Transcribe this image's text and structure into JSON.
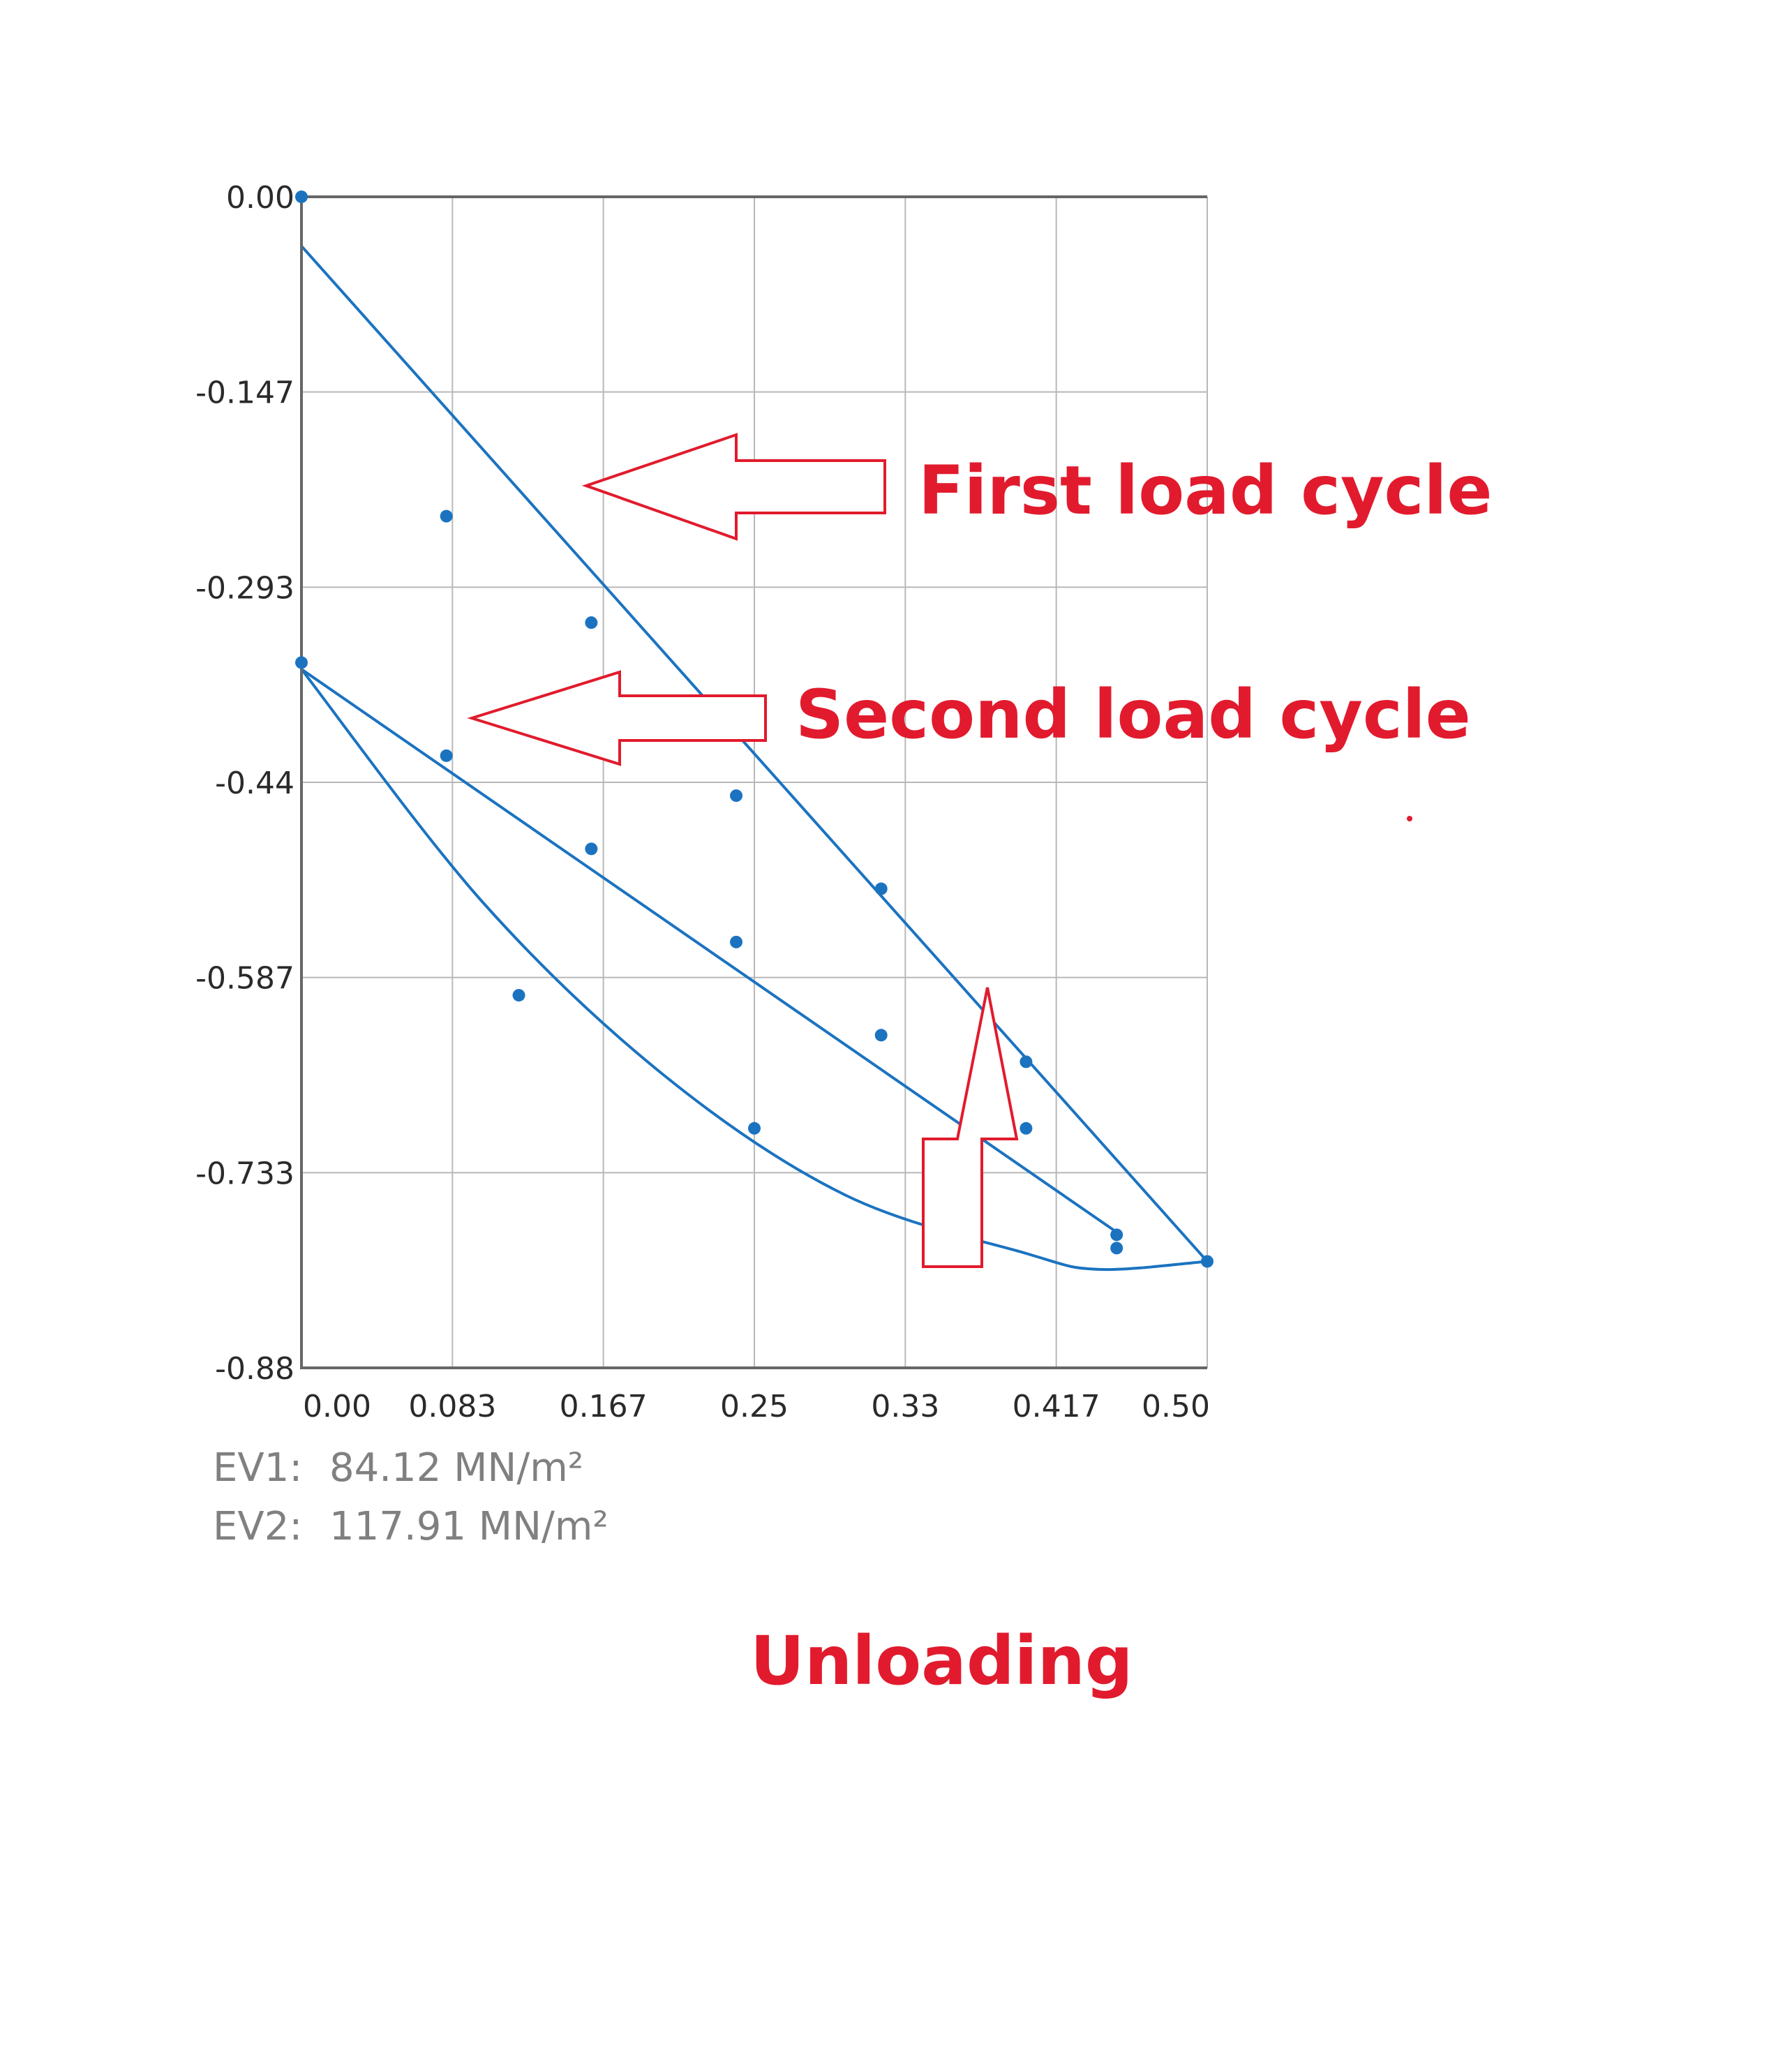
{
  "colors": {
    "series": "#1b73c0",
    "annotation": "#e11b2d",
    "info_text": "#808080",
    "grid": "#b8b8b8",
    "axis": "#666666"
  },
  "chart_data": {
    "type": "scatter",
    "title": "",
    "xlabel": "",
    "ylabel": "",
    "xlim": [
      0,
      0.5
    ],
    "ylim": [
      -0.88,
      0
    ],
    "grid": true,
    "x_ticks": [
      "0.00",
      "0.083",
      "0.167",
      "0.25",
      "0.33",
      "0.417",
      "0.50"
    ],
    "y_ticks": [
      "0.00",
      "-0.147",
      "-0.293",
      "-0.44",
      "-0.587",
      "-0.733",
      "-0.88"
    ],
    "series": [
      {
        "points": [
          [
            0.0,
            0.0
          ],
          [
            0.08,
            -0.24
          ],
          [
            0.16,
            -0.32
          ],
          [
            0.24,
            -0.45
          ],
          [
            0.32,
            -0.52
          ],
          [
            0.4,
            -0.65
          ],
          [
            0.45,
            -0.78
          ],
          [
            0.45,
            -0.79
          ],
          [
            0.5,
            -0.8
          ],
          [
            0.12,
            -0.6
          ],
          [
            0.25,
            -0.7
          ],
          [
            0.0,
            -0.35
          ],
          [
            0.08,
            -0.42
          ],
          [
            0.16,
            -0.49
          ],
          [
            0.24,
            -0.56
          ],
          [
            0.32,
            -0.63
          ],
          [
            0.4,
            -0.7
          ]
        ],
        "fits": [
          {
            "type": "line",
            "from": [
              0.0,
              -0.037
            ],
            "to": [
              0.5,
              -0.8
            ]
          },
          {
            "type": "line",
            "from": [
              0.0,
              -0.355
            ],
            "to": [
              0.45,
              -0.778
            ]
          },
          {
            "type": "curve",
            "points": [
              [
                0.0,
                -0.355
              ],
              [
                0.1,
                -0.53
              ],
              [
                0.2,
                -0.66
              ],
              [
                0.3,
                -0.75
              ],
              [
                0.4,
                -0.794
              ],
              [
                0.44,
                -0.806
              ],
              [
                0.5,
                -0.8
              ]
            ]
          }
        ]
      }
    ]
  },
  "info": {
    "ev1_label": "EV1:",
    "ev1_value": "84.12 MN/m²",
    "ev2_label": "EV2:",
    "ev2_value": "117.91 MN/m²"
  },
  "annotations": {
    "first": "First load cycle",
    "second": "Second load cycle",
    "unloading": "Unloading"
  }
}
